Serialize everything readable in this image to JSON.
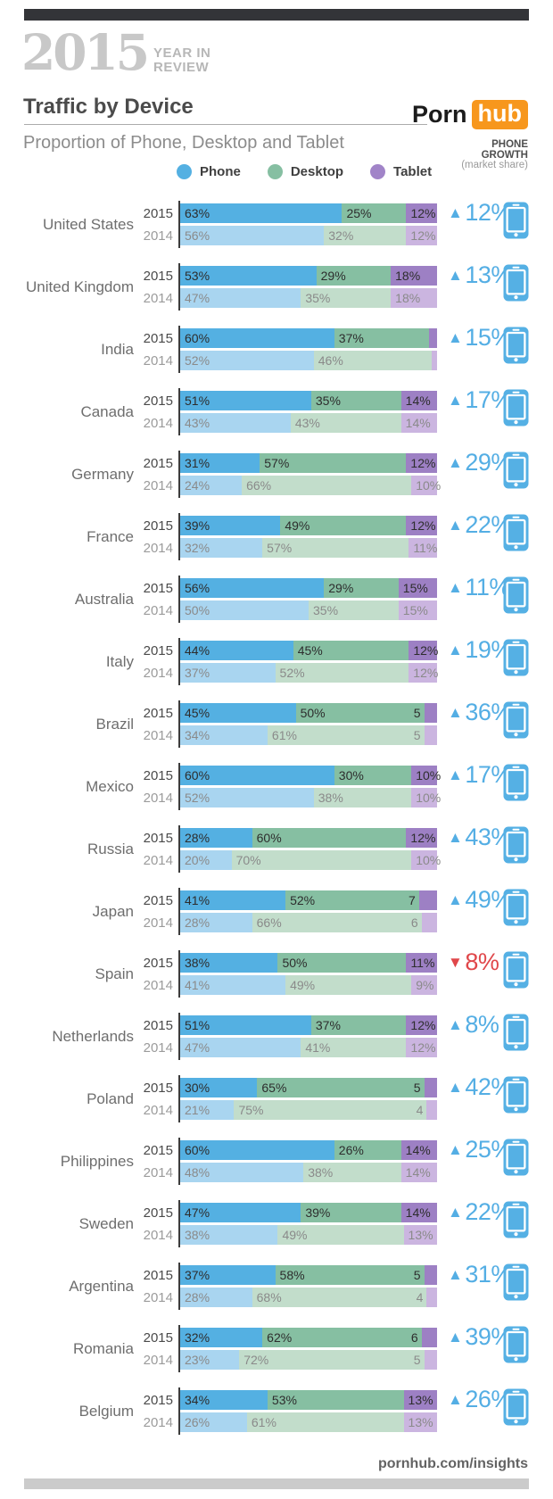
{
  "header": {
    "year_logo": "2015",
    "year_sub1": "YEAR IN",
    "year_sub2": "REVIEW",
    "title": "Traffic by Device",
    "brand_part1": "Porn",
    "brand_part2": "hub",
    "brand_accent": "#f7971d",
    "subtitle": "Proportion of Phone, Desktop and Tablet",
    "growth_header_line1": "PHONE",
    "growth_header_line2": "GROWTH",
    "growth_header_line3": "(market share)"
  },
  "legend": [
    {
      "label": "Phone",
      "color": "#54b0e2"
    },
    {
      "label": "Desktop",
      "color": "#86bfa2"
    },
    {
      "label": "Tablet",
      "color": "#a184c8"
    }
  ],
  "colors": {
    "phone_2015": "#54b0e2",
    "desktop_2015": "#86bfa2",
    "tablet_2015": "#9d80c4",
    "phone_2014": "#a9d5f0",
    "desktop_2014": "#c2ddcb",
    "tablet_2014": "#cbb5e0",
    "label_2015": "#2d2d2d",
    "label_2014": "#8a8a8a",
    "growth_up": "#54aee4",
    "growth_down": "#e0474a",
    "phone_icon": "#55b0e4"
  },
  "footer": {
    "link": "pornhub.com/insights"
  },
  "chart_data": {
    "type": "bar",
    "subtype": "horizontal-stacked",
    "title": "Traffic by Device",
    "subtitle": "Proportion of Phone, Desktop and Tablet",
    "segments": [
      "Phone",
      "Desktop",
      "Tablet"
    ],
    "years": [
      "2015",
      "2014"
    ],
    "unit": "%",
    "rows": [
      {
        "country": "United States",
        "y2015": {
          "phone": 63,
          "desktop": 25,
          "tablet": 12,
          "labels": [
            "63%",
            "25%",
            "12%"
          ]
        },
        "y2014": {
          "phone": 56,
          "desktop": 32,
          "tablet": 12,
          "labels": [
            "56%",
            "32%",
            "12%"
          ]
        },
        "growth": {
          "direction": "up",
          "label": "12%"
        }
      },
      {
        "country": "United Kingdom",
        "y2015": {
          "phone": 53,
          "desktop": 29,
          "tablet": 18,
          "labels": [
            "53%",
            "29%",
            "18%"
          ]
        },
        "y2014": {
          "phone": 47,
          "desktop": 35,
          "tablet": 18,
          "labels": [
            "47%",
            "35%",
            "18%"
          ]
        },
        "growth": {
          "direction": "up",
          "label": "13%"
        }
      },
      {
        "country": "India",
        "y2015": {
          "phone": 60,
          "desktop": 37,
          "tablet": 3,
          "labels": [
            "60%",
            "37%",
            ""
          ]
        },
        "y2014": {
          "phone": 52,
          "desktop": 46,
          "tablet": 2,
          "labels": [
            "52%",
            "46%",
            ""
          ]
        },
        "growth": {
          "direction": "up",
          "label": "15%"
        }
      },
      {
        "country": "Canada",
        "y2015": {
          "phone": 51,
          "desktop": 35,
          "tablet": 14,
          "labels": [
            "51%",
            "35%",
            "14%"
          ]
        },
        "y2014": {
          "phone": 43,
          "desktop": 43,
          "tablet": 14,
          "labels": [
            "43%",
            "43%",
            "14%"
          ]
        },
        "growth": {
          "direction": "up",
          "label": "17%"
        }
      },
      {
        "country": "Germany",
        "y2015": {
          "phone": 31,
          "desktop": 57,
          "tablet": 12,
          "labels": [
            "31%",
            "57%",
            "12%"
          ]
        },
        "y2014": {
          "phone": 24,
          "desktop": 66,
          "tablet": 10,
          "labels": [
            "24%",
            "66%",
            "10%"
          ]
        },
        "growth": {
          "direction": "up",
          "label": "29%"
        }
      },
      {
        "country": "France",
        "y2015": {
          "phone": 39,
          "desktop": 49,
          "tablet": 12,
          "labels": [
            "39%",
            "49%",
            "12%"
          ]
        },
        "y2014": {
          "phone": 32,
          "desktop": 57,
          "tablet": 11,
          "labels": [
            "32%",
            "57%",
            "11%"
          ]
        },
        "growth": {
          "direction": "up",
          "label": "22%"
        }
      },
      {
        "country": "Australia",
        "y2015": {
          "phone": 56,
          "desktop": 29,
          "tablet": 15,
          "labels": [
            "56%",
            "29%",
            "15%"
          ]
        },
        "y2014": {
          "phone": 50,
          "desktop": 35,
          "tablet": 15,
          "labels": [
            "50%",
            "35%",
            "15%"
          ]
        },
        "growth": {
          "direction": "up",
          "label": "11%"
        }
      },
      {
        "country": "Italy",
        "y2015": {
          "phone": 44,
          "desktop": 45,
          "tablet": 12,
          "labels": [
            "44%",
            "45%",
            "12%"
          ]
        },
        "y2014": {
          "phone": 37,
          "desktop": 52,
          "tablet": 12,
          "labels": [
            "37%",
            "52%",
            "12%"
          ]
        },
        "growth": {
          "direction": "up",
          "label": "19%"
        }
      },
      {
        "country": "Brazil",
        "y2015": {
          "phone": 45,
          "desktop": 50,
          "tablet": 5,
          "labels": [
            "45%",
            "50%",
            "5"
          ]
        },
        "y2014": {
          "phone": 34,
          "desktop": 61,
          "tablet": 5,
          "labels": [
            "34%",
            "61%",
            "5"
          ]
        },
        "growth": {
          "direction": "up",
          "label": "36%"
        }
      },
      {
        "country": "Mexico",
        "y2015": {
          "phone": 60,
          "desktop": 30,
          "tablet": 10,
          "labels": [
            "60%",
            "30%",
            "10%"
          ]
        },
        "y2014": {
          "phone": 52,
          "desktop": 38,
          "tablet": 10,
          "labels": [
            "52%",
            "38%",
            "10%"
          ]
        },
        "growth": {
          "direction": "up",
          "label": "17%"
        }
      },
      {
        "country": "Russia",
        "y2015": {
          "phone": 28,
          "desktop": 60,
          "tablet": 12,
          "labels": [
            "28%",
            "60%",
            "12%"
          ]
        },
        "y2014": {
          "phone": 20,
          "desktop": 70,
          "tablet": 10,
          "labels": [
            "20%",
            "70%",
            "10%"
          ]
        },
        "growth": {
          "direction": "up",
          "label": "43%"
        }
      },
      {
        "country": "Japan",
        "y2015": {
          "phone": 41,
          "desktop": 52,
          "tablet": 7,
          "labels": [
            "41%",
            "52%",
            "7"
          ]
        },
        "y2014": {
          "phone": 28,
          "desktop": 66,
          "tablet": 6,
          "labels": [
            "28%",
            "66%",
            "6"
          ]
        },
        "growth": {
          "direction": "up",
          "label": "49%"
        }
      },
      {
        "country": "Spain",
        "y2015": {
          "phone": 38,
          "desktop": 50,
          "tablet": 11,
          "labels": [
            "38%",
            "50%",
            "11%"
          ]
        },
        "y2014": {
          "phone": 41,
          "desktop": 49,
          "tablet": 9,
          "labels": [
            "41%",
            "49%",
            "9%"
          ]
        },
        "growth": {
          "direction": "down",
          "label": "8%"
        }
      },
      {
        "country": "Netherlands",
        "y2015": {
          "phone": 51,
          "desktop": 37,
          "tablet": 12,
          "labels": [
            "51%",
            "37%",
            "12%"
          ]
        },
        "y2014": {
          "phone": 47,
          "desktop": 41,
          "tablet": 12,
          "labels": [
            "47%",
            "41%",
            "12%"
          ]
        },
        "growth": {
          "direction": "up",
          "label": "8%"
        }
      },
      {
        "country": "Poland",
        "y2015": {
          "phone": 30,
          "desktop": 65,
          "tablet": 5,
          "labels": [
            "30%",
            "65%",
            "5"
          ]
        },
        "y2014": {
          "phone": 21,
          "desktop": 75,
          "tablet": 4,
          "labels": [
            "21%",
            "75%",
            "4"
          ]
        },
        "growth": {
          "direction": "up",
          "label": "42%"
        }
      },
      {
        "country": "Philippines",
        "y2015": {
          "phone": 60,
          "desktop": 26,
          "tablet": 14,
          "labels": [
            "60%",
            "26%",
            "14%"
          ]
        },
        "y2014": {
          "phone": 48,
          "desktop": 38,
          "tablet": 14,
          "labels": [
            "48%",
            "38%",
            "14%"
          ]
        },
        "growth": {
          "direction": "up",
          "label": "25%"
        }
      },
      {
        "country": "Sweden",
        "y2015": {
          "phone": 47,
          "desktop": 39,
          "tablet": 14,
          "labels": [
            "47%",
            "39%",
            "14%"
          ]
        },
        "y2014": {
          "phone": 38,
          "desktop": 49,
          "tablet": 13,
          "labels": [
            "38%",
            "49%",
            "13%"
          ]
        },
        "growth": {
          "direction": "up",
          "label": "22%"
        }
      },
      {
        "country": "Argentina",
        "y2015": {
          "phone": 37,
          "desktop": 58,
          "tablet": 5,
          "labels": [
            "37%",
            "58%",
            "5"
          ]
        },
        "y2014": {
          "phone": 28,
          "desktop": 68,
          "tablet": 4,
          "labels": [
            "28%",
            "68%",
            "4"
          ]
        },
        "growth": {
          "direction": "up",
          "label": "31%"
        }
      },
      {
        "country": "Romania",
        "y2015": {
          "phone": 32,
          "desktop": 62,
          "tablet": 6,
          "labels": [
            "32%",
            "62%",
            "6"
          ]
        },
        "y2014": {
          "phone": 23,
          "desktop": 72,
          "tablet": 5,
          "labels": [
            "23%",
            "72%",
            "5"
          ]
        },
        "growth": {
          "direction": "up",
          "label": "39%"
        }
      },
      {
        "country": "Belgium",
        "y2015": {
          "phone": 34,
          "desktop": 53,
          "tablet": 13,
          "labels": [
            "34%",
            "53%",
            "13%"
          ]
        },
        "y2014": {
          "phone": 26,
          "desktop": 61,
          "tablet": 13,
          "labels": [
            "26%",
            "61%",
            "13%"
          ]
        },
        "growth": {
          "direction": "up",
          "label": "26%"
        }
      }
    ]
  }
}
